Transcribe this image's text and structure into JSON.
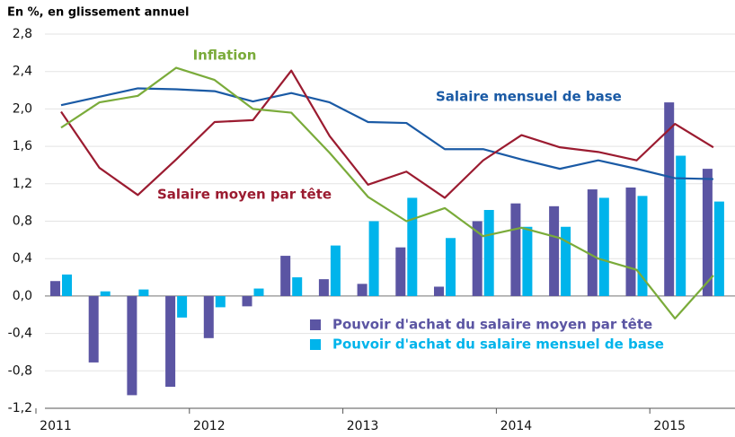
{
  "chart_data": {
    "type": "bar-line",
    "subtitle": "En %, en glissement annuel",
    "categories": [
      "2011",
      null,
      null,
      null,
      "2012",
      null,
      null,
      null,
      "2013",
      null,
      null,
      null,
      "2014",
      null,
      null,
      null,
      "2015",
      null
    ],
    "ylim": [
      -1.2,
      2.8
    ],
    "yticks": [
      {
        "value": -1.2,
        "label": "-1,2"
      },
      {
        "value": -0.8,
        "label": "-0,8"
      },
      {
        "value": -0.4,
        "label": "-0,4"
      },
      {
        "value": 0,
        "label": "0,0"
      },
      {
        "value": 0.4,
        "label": "0,4"
      },
      {
        "value": 0.8,
        "label": "0,8"
      },
      {
        "value": 1.2,
        "label": "1,2"
      },
      {
        "value": 1.6,
        "label": "1,6"
      },
      {
        "value": 2.0,
        "label": "2,0"
      },
      {
        "value": 2.4,
        "label": "2,4"
      },
      {
        "value": 2.8,
        "label": "2,8"
      }
    ],
    "grid": true,
    "series": [
      {
        "name": "Pouvoir d'achat du salaire moyen par tête",
        "kind": "bar",
        "color": "#5b55a3",
        "values": [
          0.16,
          -0.71,
          -1.06,
          -0.97,
          -0.45,
          -0.11,
          0.43,
          0.18,
          0.13,
          0.52,
          0.1,
          0.8,
          0.99,
          0.96,
          1.14,
          1.16,
          2.07,
          1.36
        ]
      },
      {
        "name": "Pouvoir d'achat du salaire mensuel de base",
        "kind": "bar",
        "color": "#00b4eb",
        "values": [
          0.23,
          0.05,
          0.07,
          -0.23,
          -0.12,
          0.08,
          0.2,
          0.54,
          0.8,
          1.05,
          0.62,
          0.92,
          0.74,
          0.74,
          1.05,
          1.07,
          1.5,
          1.01
        ]
      },
      {
        "name": "Salaire mensuel de base",
        "kind": "line",
        "color": "#1a5aa5",
        "values": [
          2.04,
          2.13,
          2.22,
          2.21,
          2.19,
          2.08,
          2.17,
          2.07,
          1.86,
          1.85,
          1.57,
          1.57,
          1.46,
          1.36,
          1.45,
          1.36,
          1.26,
          1.25
        ]
      },
      {
        "name": "Salaire moyen par tête",
        "kind": "line",
        "color": "#9b1b30",
        "values": [
          1.97,
          1.37,
          1.08,
          1.46,
          1.86,
          1.88,
          2.41,
          1.71,
          1.19,
          1.33,
          1.05,
          1.45,
          1.72,
          1.59,
          1.54,
          1.45,
          1.84,
          1.59
        ]
      },
      {
        "name": "Inflation",
        "kind": "line",
        "color": "#7aab3a",
        "values": [
          1.8,
          2.07,
          2.14,
          2.44,
          2.31,
          2.0,
          1.96,
          1.53,
          1.06,
          0.8,
          0.94,
          0.64,
          0.73,
          0.62,
          0.4,
          0.28,
          -0.24,
          0.22
        ]
      }
    ]
  }
}
